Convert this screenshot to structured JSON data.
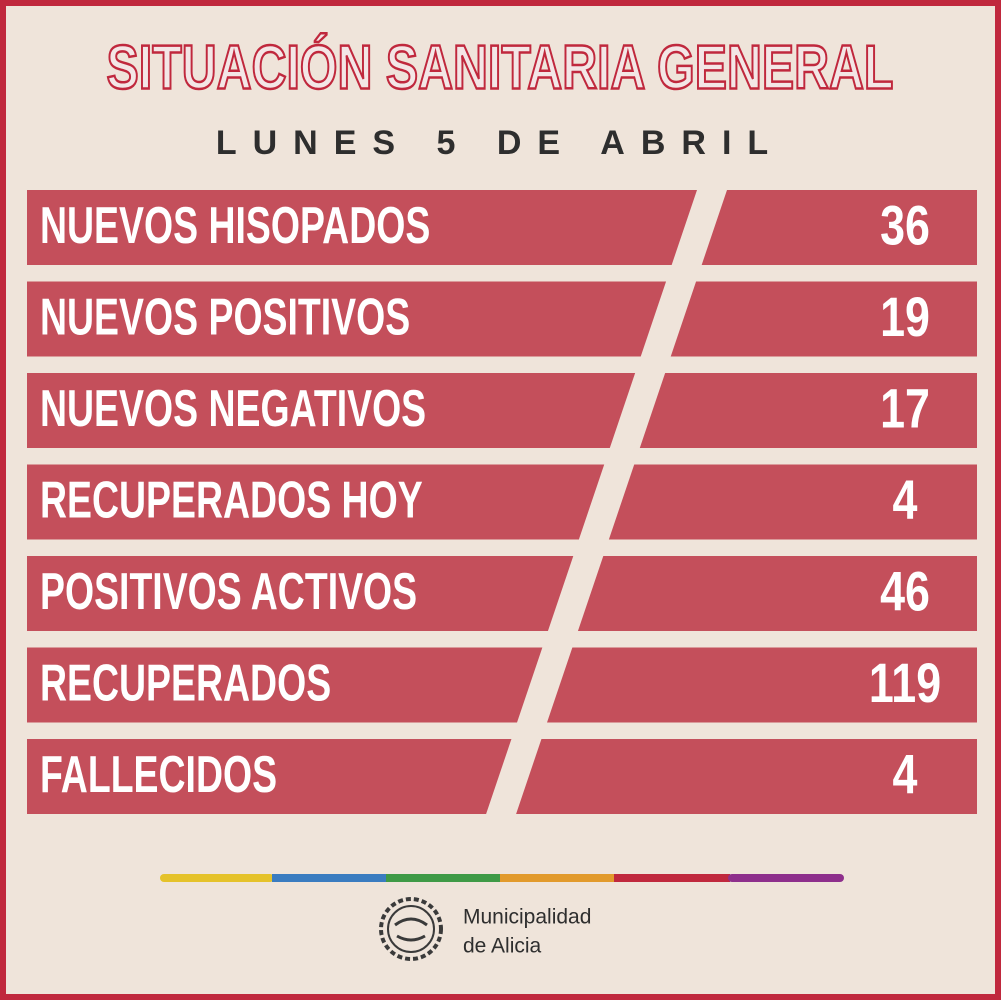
{
  "header": {
    "title": "SITUACIÓN SANITARIA GENERAL",
    "subtitle": "LUNES 5 DE ABRIL"
  },
  "table": {
    "rows": [
      [
        "NUEVOS HISOPADOS",
        36
      ],
      [
        "NUEVOS POSITIVOS",
        19
      ],
      [
        "NUEVOS NEGATIVOS",
        17
      ],
      [
        "RECUPERADOS HOY",
        4
      ],
      [
        "POSITIVOS ACTIVOS",
        46
      ],
      [
        "RECUPERADOS",
        119
      ],
      [
        "FALLECIDOS",
        4
      ]
    ]
  },
  "footer": {
    "lines": [
      "Municipalidad",
      "de Alicia"
    ]
  }
}
